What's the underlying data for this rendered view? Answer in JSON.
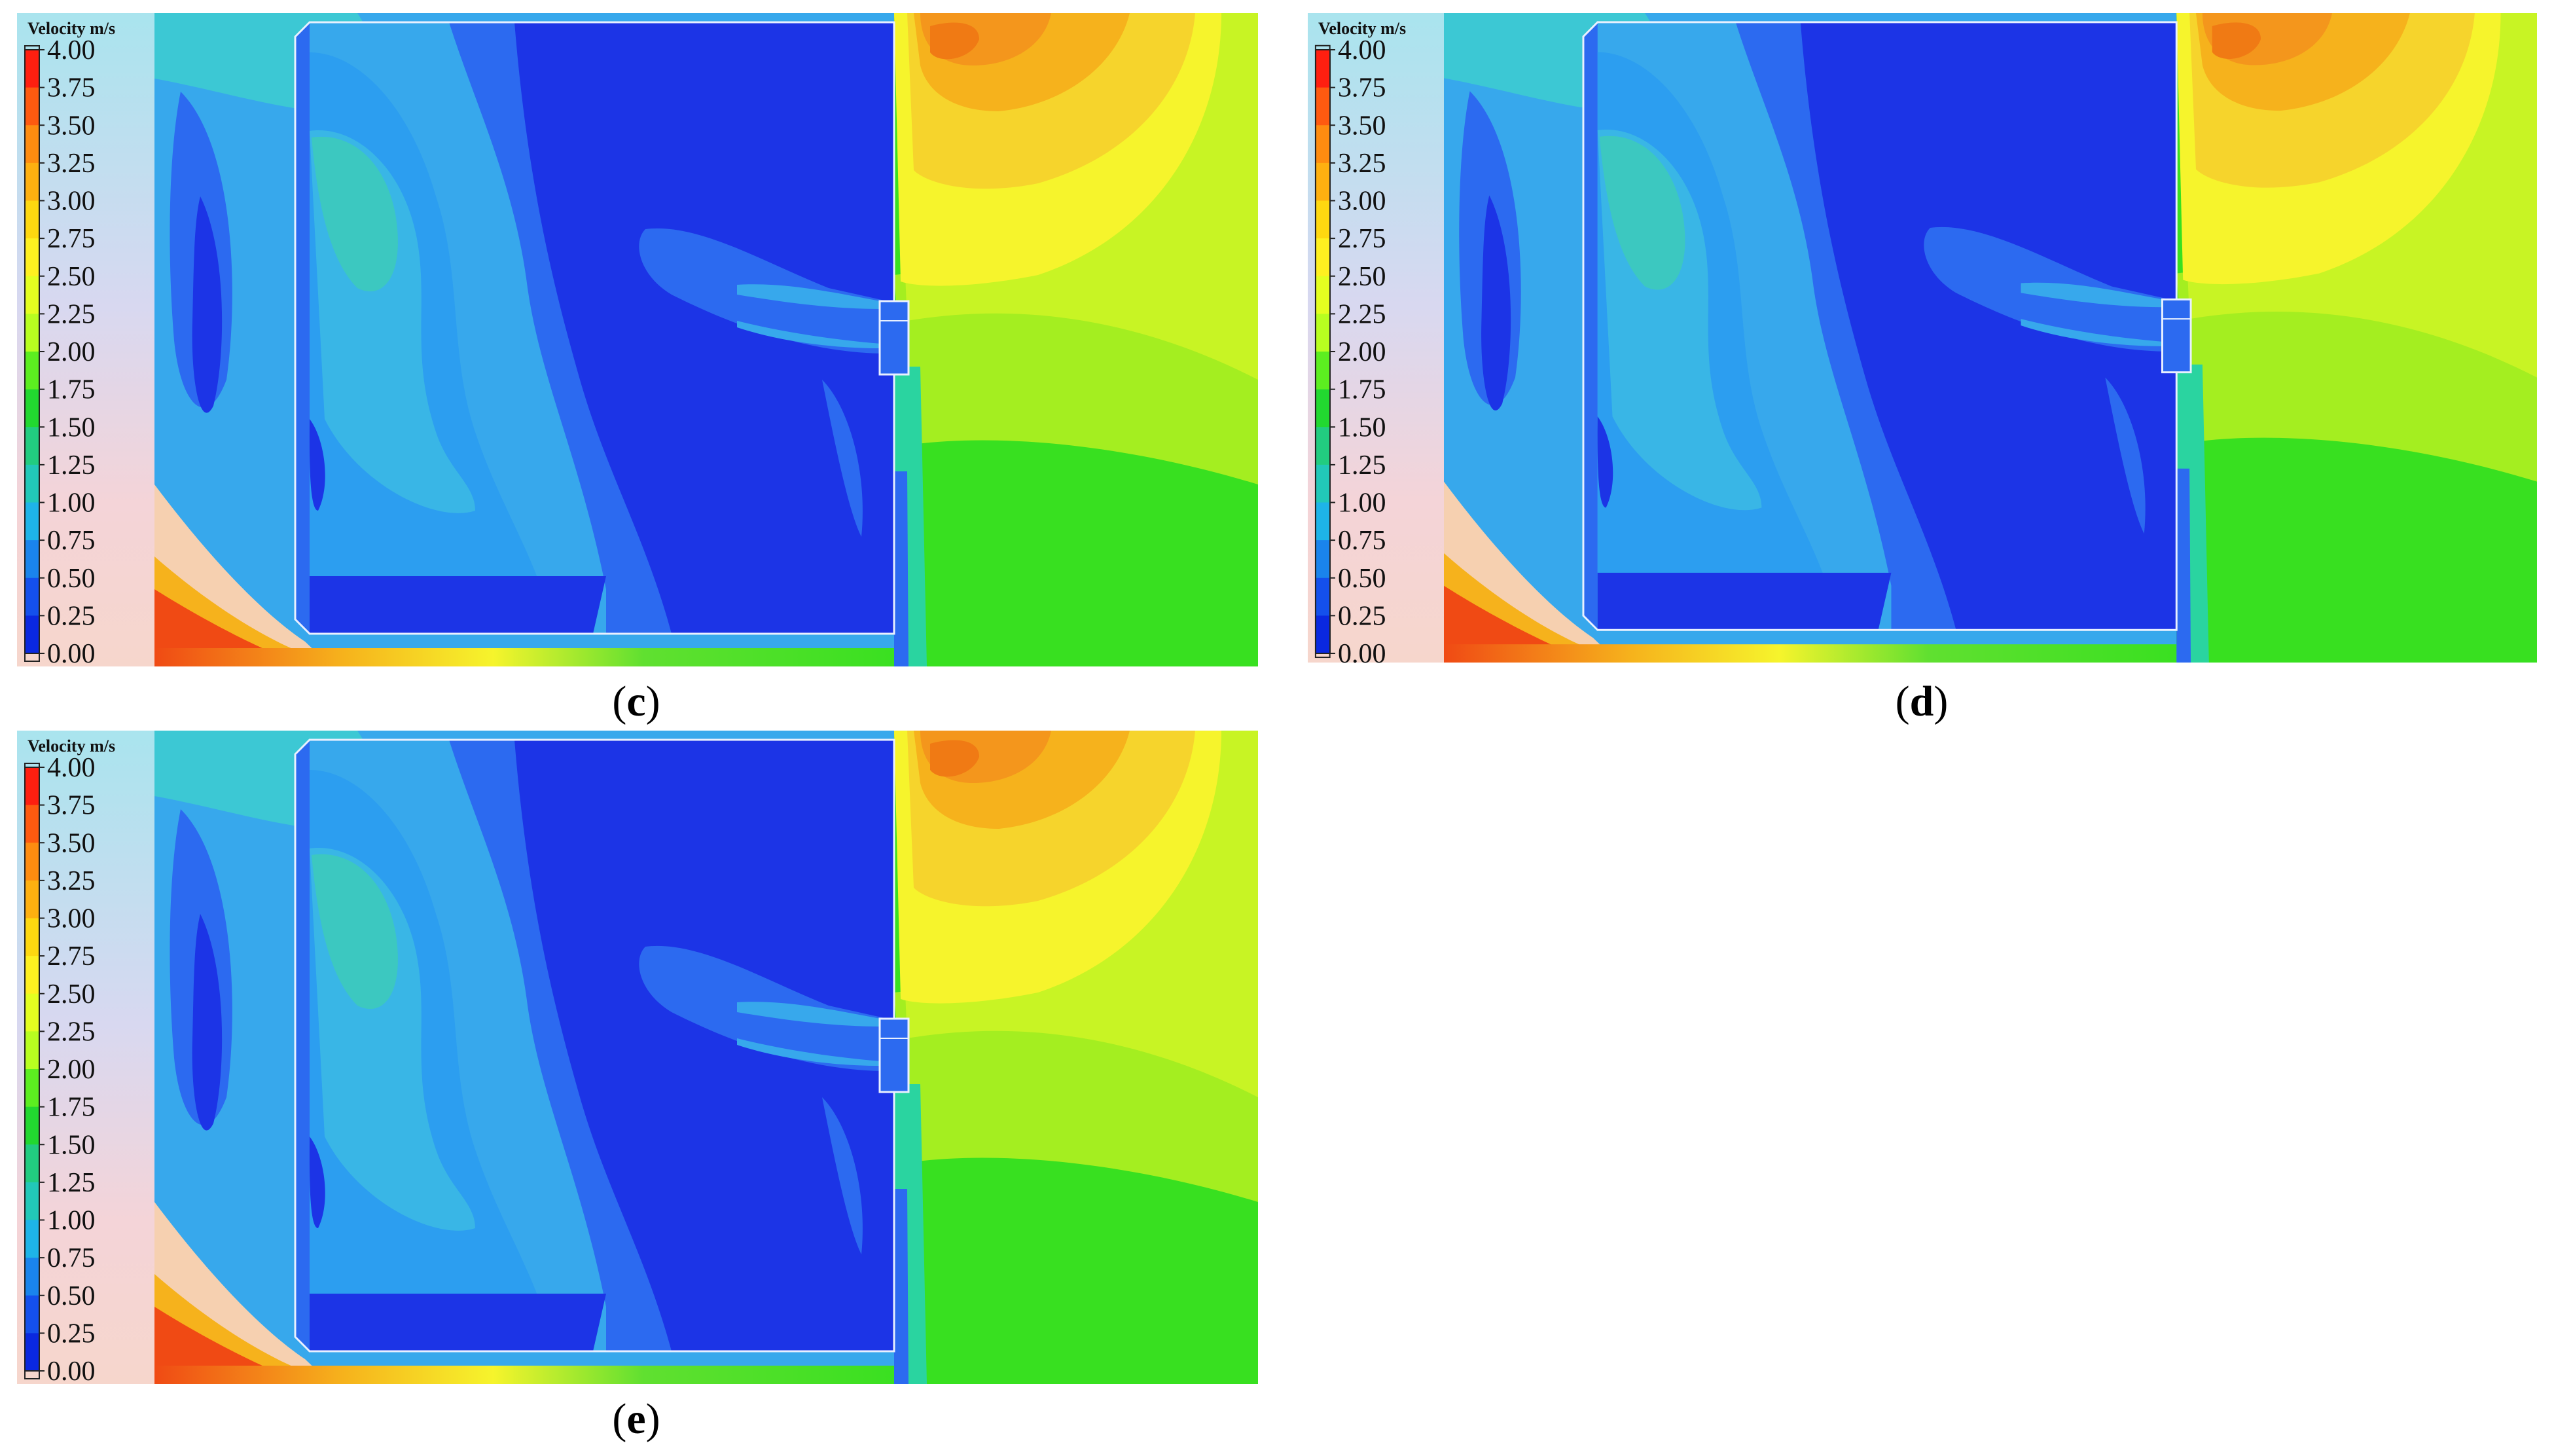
{
  "legend": {
    "title": "Velocity",
    "unit": "m/s",
    "ticks": [
      "4.00",
      "3.75",
      "3.50",
      "3.25",
      "3.00",
      "2.75",
      "2.50",
      "2.25",
      "2.00",
      "1.75",
      "1.50",
      "1.25",
      "1.00",
      "0.75",
      "0.50",
      "0.25",
      "0.00"
    ],
    "colors": [
      "#ff1f10",
      "#ff5a10",
      "#ff8c10",
      "#ffb010",
      "#ffd810",
      "#fff020",
      "#e4ff20",
      "#b8ff20",
      "#5cee20",
      "#22d830",
      "#22cc80",
      "#22c8b8",
      "#1eb4e8",
      "#1a84ec",
      "#1450ec",
      "#0a28e0",
      "#0000c8"
    ]
  },
  "panels": [
    {
      "id": "c",
      "open": "(",
      "letter": "c",
      "close": ")"
    },
    {
      "id": "d",
      "open": "(",
      "letter": "d",
      "close": ")"
    },
    {
      "id": "e",
      "open": "(",
      "letter": "e",
      "close": ")"
    }
  ],
  "colors": {
    "deep_blue": "#1c34e6",
    "mid_blue": "#2c6af0",
    "light_blue": "#37a8ec",
    "cyan": "#3cc8d4",
    "yellow": "#f6f42c",
    "orange": "#f6b21c",
    "green": "#38e020",
    "left_pale": "#bfe8f0",
    "red_orange": "#f04a14"
  }
}
